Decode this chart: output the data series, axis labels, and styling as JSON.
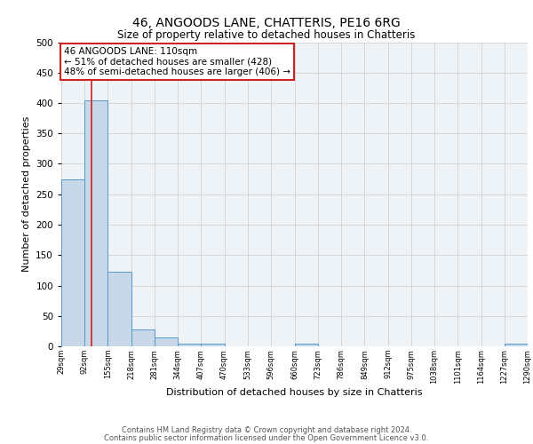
{
  "title1": "46, ANGOODS LANE, CHATTERIS, PE16 6RG",
  "title2": "Size of property relative to detached houses in Chatteris",
  "xlabel": "Distribution of detached houses by size in Chatteris",
  "ylabel": "Number of detached properties",
  "bin_labels": [
    "29sqm",
    "92sqm",
    "155sqm",
    "218sqm",
    "281sqm",
    "344sqm",
    "407sqm",
    "470sqm",
    "533sqm",
    "596sqm",
    "660sqm",
    "723sqm",
    "786sqm",
    "849sqm",
    "912sqm",
    "975sqm",
    "1038sqm",
    "1101sqm",
    "1164sqm",
    "1227sqm",
    "1290sqm"
  ],
  "bar_values": [
    275,
    405,
    122,
    28,
    15,
    5,
    5,
    0,
    0,
    0,
    5,
    0,
    0,
    0,
    0,
    0,
    0,
    0,
    0,
    5,
    0
  ],
  "bin_edges": [
    29,
    92,
    155,
    218,
    281,
    344,
    407,
    470,
    533,
    596,
    660,
    723,
    786,
    849,
    912,
    975,
    1038,
    1101,
    1164,
    1227,
    1290
  ],
  "bar_color": "#c8d8e8",
  "bar_edge_color": "#5599cc",
  "red_line_x": 110,
  "red_line_color": "#cc2222",
  "annotation_line1": "46 ANGOODS LANE: 110sqm",
  "annotation_line2": "← 51% of detached houses are smaller (428)",
  "annotation_line3": "48% of semi-detached houses are larger (406) →",
  "annotation_box_color": "#ffffff",
  "annotation_box_edge": "#cc2222",
  "ylim": [
    0,
    500
  ],
  "yticks": [
    0,
    50,
    100,
    150,
    200,
    250,
    300,
    350,
    400,
    450,
    500
  ],
  "grid_color": "#cccccc",
  "bg_color": "#eef3f8",
  "footer1": "Contains HM Land Registry data © Crown copyright and database right 2024.",
  "footer2": "Contains public sector information licensed under the Open Government Licence v3.0."
}
